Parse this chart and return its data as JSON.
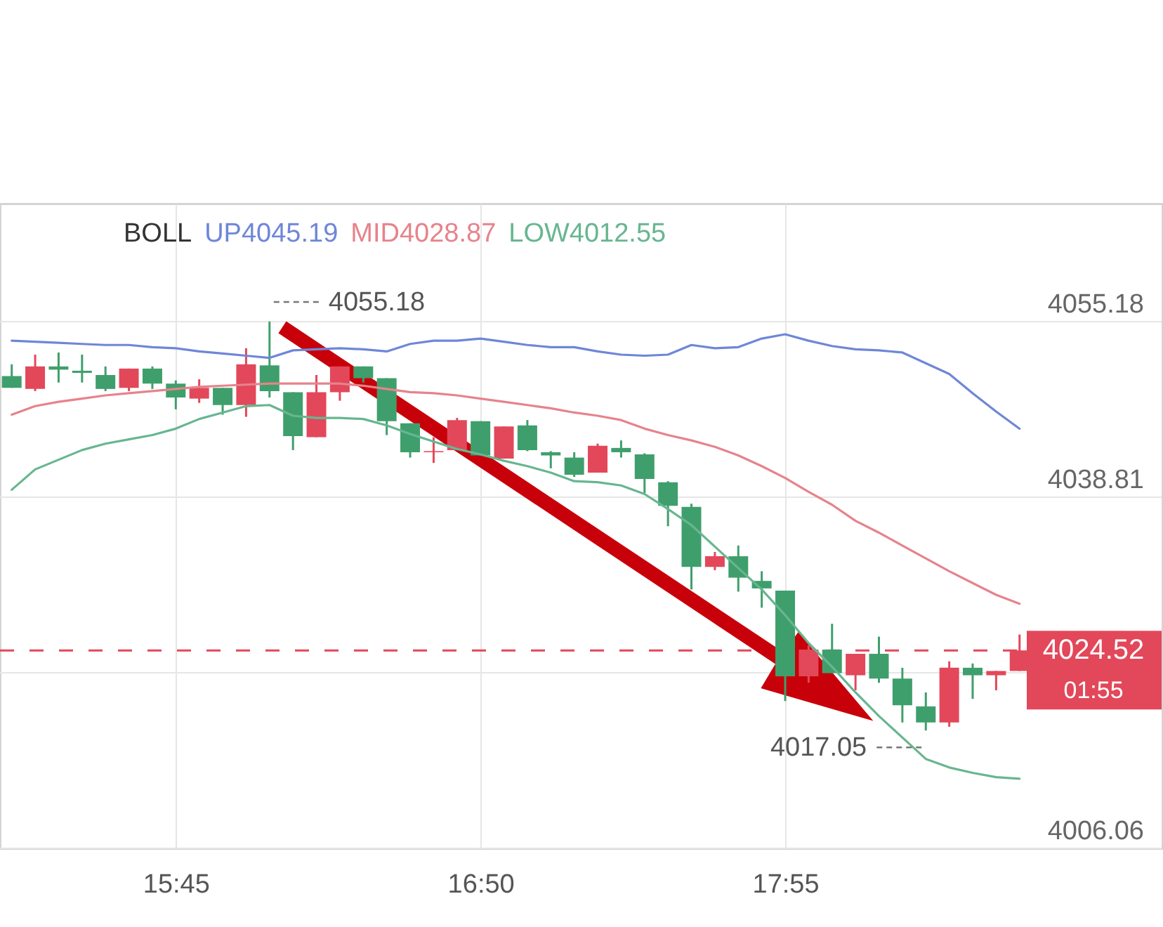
{
  "chart_data": {
    "type": "candlestick",
    "x": [
      15.1667,
      15.25,
      15.3333,
      15.4167,
      15.5,
      15.5833,
      15.6667,
      15.75,
      15.8333,
      15.9167,
      16,
      16.0833,
      16.1667,
      16.25,
      16.3333,
      16.4167,
      16.5,
      16.5833,
      16.6667,
      16.75,
      16.8333,
      16.9167,
      17,
      17.0833,
      17.1667,
      17.25,
      17.3333,
      17.4167,
      17.5,
      17.5833,
      17.6667,
      17.75,
      17.8333,
      17.9167,
      18,
      18.0833,
      18.1667,
      18.25,
      18.3333,
      18.4167,
      18.5,
      18.5833,
      18.6667,
      18.75
    ],
    "ohlc": [
      [
        4050.1,
        4051.2,
        4049.0,
        4049.0
      ],
      [
        4048.9,
        4052.1,
        4048.7,
        4051.0
      ],
      [
        4051.0,
        4052.3,
        4049.5,
        4050.7
      ],
      [
        4050.6,
        4052.1,
        4049.5,
        4050.4
      ],
      [
        4050.2,
        4051.0,
        4048.7,
        4048.9
      ],
      [
        4049.0,
        4050.8,
        4048.7,
        4050.8
      ],
      [
        4050.8,
        4051.0,
        4048.9,
        4049.4
      ],
      [
        4049.4,
        4049.7,
        4047.0,
        4048.1
      ],
      [
        4048.0,
        4049.8,
        4047.6,
        4049.0
      ],
      [
        4049.0,
        4049.0,
        4046.5,
        4047.4
      ],
      [
        4047.4,
        4052.7,
        4046.3,
        4051.2
      ],
      [
        4051.1,
        4055.18,
        4048.1,
        4048.7
      ],
      [
        4048.6,
        4048.6,
        4043.2,
        4044.5
      ],
      [
        4044.4,
        4050.2,
        4044.4,
        4048.6
      ],
      [
        4048.6,
        4051.0,
        4047.8,
        4051.0
      ],
      [
        4051.0,
        4051.0,
        4049.5,
        4049.9
      ],
      [
        4049.9,
        4049.9,
        4044.6,
        4045.9
      ],
      [
        4045.7,
        4045.7,
        4042.5,
        4043.0
      ],
      [
        4043.0,
        4044.4,
        4042.0,
        4043.1
      ],
      [
        4043.2,
        4046.2,
        4043.2,
        4046.0
      ],
      [
        4045.9,
        4045.9,
        4042.7,
        4042.7
      ],
      [
        4042.4,
        4045.4,
        4042.4,
        4045.4
      ],
      [
        4045.5,
        4046.0,
        4043.1,
        4043.2
      ],
      [
        4043.0,
        4043.1,
        4041.5,
        4042.7
      ],
      [
        4042.5,
        4043.0,
        4040.7,
        4040.9
      ],
      [
        4041.1,
        4043.8,
        4041.1,
        4043.6
      ],
      [
        4043.4,
        4044.1,
        4042.5,
        4043.0
      ],
      [
        4042.8,
        4042.9,
        4039.2,
        4040.5
      ],
      [
        4040.2,
        4040.3,
        4036.1,
        4038.0
      ],
      [
        4037.9,
        4038.2,
        4030.2,
        4032.3
      ],
      [
        4032.3,
        4033.7,
        4032.0,
        4033.3
      ],
      [
        4033.3,
        4034.3,
        4030.0,
        4031.3
      ],
      [
        4031.0,
        4031.9,
        4028.5,
        4030.3
      ],
      [
        4030.1,
        4030.1,
        4019.8,
        4022.1
      ],
      [
        4022.1,
        4025.0,
        4021.5,
        4024.6
      ],
      [
        4024.6,
        4027.0,
        4022.4,
        4022.4
      ],
      [
        4022.2,
        4024.2,
        4020.8,
        4024.2
      ],
      [
        4024.2,
        4025.8,
        4021.5,
        4021.9
      ],
      [
        4021.9,
        4022.9,
        4017.8,
        4019.4
      ],
      [
        4019.3,
        4020.6,
        4017.05,
        4017.8
      ],
      [
        4017.8,
        4023.5,
        4017.4,
        4022.9
      ],
      [
        4022.9,
        4023.3,
        4020.0,
        4022.2
      ],
      [
        4022.2,
        4022.6,
        4020.8,
        4022.6
      ],
      [
        4022.6,
        4026.0,
        4022.6,
        4024.52
      ]
    ],
    "colors": [
      "#3f9f6c",
      "#e2485a",
      "#3f9f6c",
      "#3f9f6c",
      "#3f9f6c",
      "#e2485a",
      "#3f9f6c",
      "#3f9f6c",
      "#e2485a",
      "#3f9f6c",
      "#e2485a",
      "#3f9f6c",
      "#3f9f6c",
      "#e2485a",
      "#e2485a",
      "#3f9f6c",
      "#3f9f6c",
      "#3f9f6c",
      "#e2485a",
      "#e2485a",
      "#3f9f6c",
      "#e2485a",
      "#3f9f6c",
      "#3f9f6c",
      "#3f9f6c",
      "#e2485a",
      "#3f9f6c",
      "#3f9f6c",
      "#3f9f6c",
      "#3f9f6c",
      "#e2485a",
      "#3f9f6c",
      "#3f9f6c",
      "#3f9f6c",
      "#e2485a",
      "#3f9f6c",
      "#e2485a",
      "#3f9f6c",
      "#3f9f6c",
      "#3f9f6c",
      "#e2485a",
      "#3f9f6c",
      "#e2485a",
      "#e2485a"
    ],
    "series": [
      {
        "name": "UP4045.19",
        "type": "line",
        "color": "#6f86d8",
        "values": [
          4053.4,
          4053.3,
          4053.2,
          4053.1,
          4053.0,
          4053.0,
          4052.8,
          4052.7,
          4052.4,
          4052.2,
          4052.0,
          4051.8,
          4052.5,
          4052.6,
          4052.7,
          4052.6,
          4052.4,
          4053.1,
          4053.4,
          4053.4,
          4053.6,
          4053.3,
          4053.0,
          4052.8,
          4052.8,
          4052.4,
          4052.1,
          4052.0,
          4052.1,
          4053.0,
          4052.7,
          4052.8,
          4053.6,
          4054.0,
          4053.4,
          4052.9,
          4052.6,
          4052.5,
          4052.3,
          4051.3,
          4050.3,
          4048.5,
          4046.8,
          4045.19
        ]
      },
      {
        "name": "MID4028.87",
        "type": "line",
        "color": "#e6838c",
        "values": [
          4046.5,
          4047.3,
          4047.7,
          4048.0,
          4048.3,
          4048.5,
          4048.7,
          4048.9,
          4049.1,
          4049.2,
          4049.3,
          4049.4,
          4049.4,
          4049.4,
          4049.4,
          4049.2,
          4048.9,
          4048.6,
          4048.5,
          4048.3,
          4048.0,
          4047.7,
          4047.4,
          4047.1,
          4046.7,
          4046.4,
          4046.0,
          4045.2,
          4044.6,
          4044.1,
          4043.5,
          4042.7,
          4041.7,
          4040.6,
          4039.3,
          4038.1,
          4036.6,
          4035.5,
          4034.3,
          4033.1,
          4031.9,
          4030.8,
          4029.7,
          4028.87
        ]
      },
      {
        "name": "LOW4012.55",
        "type": "line",
        "color": "#67b690",
        "values": [
          4039.5,
          4041.4,
          4042.3,
          4043.2,
          4043.8,
          4044.2,
          4044.6,
          4045.2,
          4046.1,
          4046.7,
          4047.3,
          4047.4,
          4046.4,
          4046.2,
          4046.2,
          4046.1,
          4045.5,
          4044.7,
          4044.0,
          4043.3,
          4042.8,
          4042.2,
          4041.7,
          4041.1,
          4040.3,
          4040.2,
          4039.9,
          4039.1,
          4037.7,
          4036.2,
          4034.2,
          4032.2,
          4030.2,
          4027.8,
          4025.2,
          4023.0,
          4020.6,
          4018.4,
          4016.4,
          4014.4,
          4013.6,
          4013.1,
          4012.7,
          4012.55
        ]
      }
    ],
    "legend_title": "BOLL",
    "legend": "top left",
    "xlim": [
      15.125,
      19.26
    ],
    "xticks": [
      {
        "value": 15.75,
        "label": "15:45"
      },
      {
        "value": 16.8333,
        "label": "16:50"
      },
      {
        "value": 17.9167,
        "label": "17:55"
      }
    ],
    "ylim": [
      4006.06,
      4066.18
    ],
    "yticks": [
      4006.06,
      {
        "value": 4022.43,
        "label": null
      },
      4038.81,
      4055.18
    ],
    "grid": true,
    "ref_lines": [
      {
        "axis": "y",
        "value": 4024.52,
        "color": "#e2485a",
        "line_style": "dashed"
      }
    ],
    "annotations": [
      {
        "text": "4055.18",
        "x": 16.0833,
        "y": 4055.18
      },
      {
        "text": "4017.05",
        "x": 18.4167,
        "y": 4017.05
      },
      "4024.52",
      "01:55"
    ]
  }
}
